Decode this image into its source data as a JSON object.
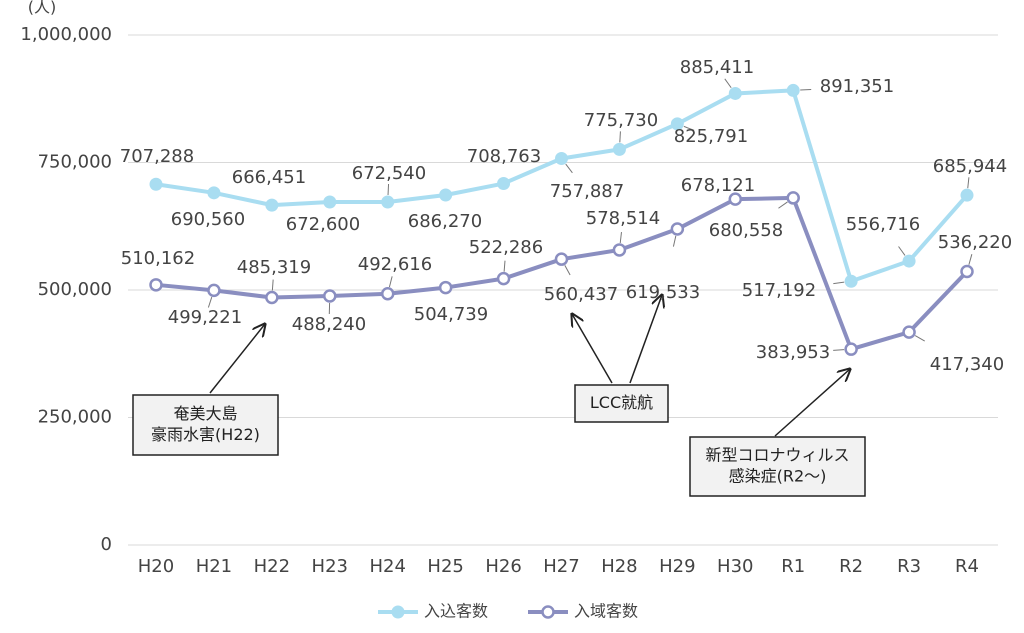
{
  "chart_data": {
    "type": "line",
    "y_label": "(人)",
    "categories": [
      "H20",
      "H21",
      "H22",
      "H23",
      "H24",
      "H25",
      "H26",
      "H27",
      "H28",
      "H29",
      "H30",
      "R1",
      "R2",
      "R3",
      "R4"
    ],
    "series": [
      {
        "name": "入込客数",
        "color": "#a9ddf1",
        "values": [
          707288,
          690560,
          666451,
          672600,
          672540,
          686270,
          708763,
          757887,
          775730,
          825791,
          885411,
          891351,
          517192,
          556716,
          685944
        ],
        "value_labels": [
          "707,288",
          "690,560",
          "666,451",
          "672,600",
          "672,540",
          "686,270",
          "708,763",
          "757,887",
          "775,730",
          "825,791",
          "885,411",
          "891,351",
          "517,192",
          "556,716",
          "685,944"
        ]
      },
      {
        "name": "入域客数",
        "color": "#8a8ec0",
        "values": [
          510162,
          499221,
          485319,
          488240,
          492616,
          504739,
          522286,
          560437,
          578514,
          619533,
          678121,
          680558,
          383953,
          417340,
          536220
        ],
        "value_labels": [
          "510,162",
          "499,221",
          "485,319",
          "488,240",
          "492,616",
          "504,739",
          "522,286",
          "560,437",
          "578,514",
          "619,533",
          "678,121",
          "680,558",
          "383,953",
          "417,340",
          "536,220"
        ]
      }
    ],
    "ylim": [
      0,
      1000000
    ],
    "yticks": [
      {
        "value": 0,
        "label": "0"
      },
      {
        "value": 250000,
        "label": "250,000"
      },
      {
        "value": 500000,
        "label": "500,000"
      },
      {
        "value": 750000,
        "label": "750,000"
      },
      {
        "value": 1000000,
        "label": "1,000,000"
      }
    ],
    "grid": true,
    "annotations": [
      {
        "lines": [
          "奄美大島",
          "豪雨水害(H22)"
        ]
      },
      {
        "lines": [
          "LCC就航"
        ]
      },
      {
        "lines": [
          "新型コロナウィルス",
          "感染症(R2～)"
        ]
      }
    ]
  }
}
